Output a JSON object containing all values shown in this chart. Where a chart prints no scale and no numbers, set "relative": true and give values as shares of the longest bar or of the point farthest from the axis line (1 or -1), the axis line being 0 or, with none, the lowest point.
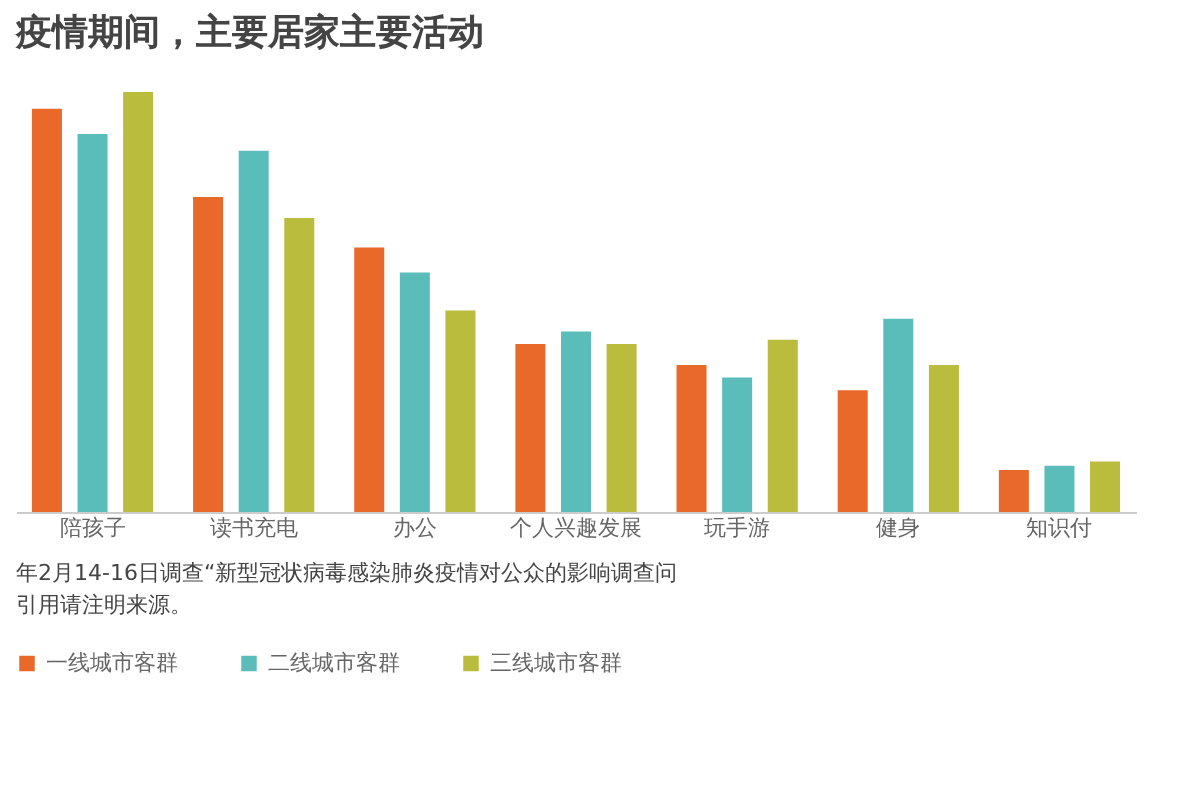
{
  "chart_data": {
    "type": "bar",
    "title": "疫情期间，主要居家主要活动",
    "relative": true,
    "categories": [
      "陪孩子",
      "读书充电",
      "办公",
      "个人兴趣发展",
      "玩手游",
      "健身",
      "知识付"
    ],
    "series": [
      {
        "name": "一线城市客群",
        "color": "#e8692a",
        "values": [
          0.96,
          0.75,
          0.63,
          0.4,
          0.35,
          0.29,
          0.1
        ]
      },
      {
        "name": "二线城市客群",
        "color": "#5bbdb9",
        "values": [
          0.9,
          0.86,
          0.57,
          0.43,
          0.32,
          0.46,
          0.11
        ]
      },
      {
        "name": "三线城市客群",
        "color": "#b9bc3c",
        "values": [
          1,
          0.7,
          0.48,
          0.4,
          0.41,
          0.35,
          0.12
        ]
      }
    ],
    "legend": "bottom",
    "grid": false,
    "annotations": [
      "年2月14-16日调查“新型冠状病毒感染肺炎疫情对公众的影响调查问",
      "引用请注明来源。"
    ]
  }
}
